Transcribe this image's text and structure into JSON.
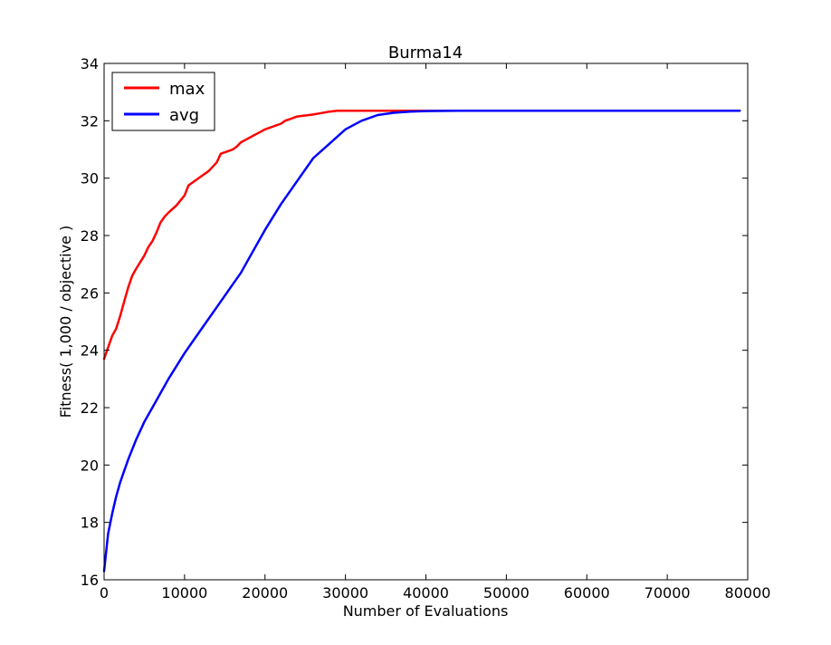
{
  "chart_data": {
    "type": "line",
    "title": "Burma14",
    "xlabel": "Number of Evaluations",
    "ylabel": "Fitness( 1,000 / objective )",
    "xlim": [
      0,
      80000
    ],
    "ylim": [
      16,
      34
    ],
    "xticks": [
      0,
      10000,
      20000,
      30000,
      40000,
      50000,
      60000,
      70000,
      80000
    ],
    "yticks": [
      16,
      18,
      20,
      22,
      24,
      26,
      28,
      30,
      32,
      34
    ],
    "xtick_labels": [
      "0",
      "10000",
      "20000",
      "30000",
      "40000",
      "50000",
      "60000",
      "70000",
      "80000"
    ],
    "ytick_labels": [
      "16",
      "18",
      "20",
      "22",
      "24",
      "26",
      "28",
      "30",
      "32",
      "34"
    ],
    "grid": false,
    "legend_position": "top-left",
    "series": [
      {
        "name": "max",
        "color": "#ff0000",
        "x": [
          0,
          500,
          1000,
          1500,
          2000,
          2500,
          3000,
          3500,
          4000,
          5000,
          5500,
          6000,
          6500,
          7000,
          7500,
          8000,
          9000,
          10000,
          10500,
          12000,
          13000,
          14000,
          14500,
          15500,
          16000,
          16500,
          17000,
          18000,
          20000,
          22000,
          22500,
          23000,
          24000,
          26000,
          27000,
          28000,
          29000,
          30000,
          35000,
          40000,
          50000,
          60000,
          70000,
          79000
        ],
        "y": [
          23.7,
          24.1,
          24.5,
          24.75,
          25.2,
          25.7,
          26.2,
          26.6,
          26.85,
          27.3,
          27.6,
          27.8,
          28.1,
          28.45,
          28.65,
          28.8,
          29.05,
          29.4,
          29.75,
          30.05,
          30.25,
          30.55,
          30.85,
          30.95,
          31.0,
          31.1,
          31.25,
          31.4,
          31.7,
          31.9,
          32.0,
          32.05,
          32.15,
          32.22,
          32.27,
          32.32,
          32.35,
          32.35,
          32.35,
          32.35,
          32.35,
          32.35,
          32.35,
          32.35
        ]
      },
      {
        "name": "avg",
        "color": "#0000ff",
        "x": [
          0,
          500,
          1000,
          1500,
          2000,
          3000,
          4000,
          5000,
          6000,
          8000,
          10000,
          12000,
          14000,
          16000,
          17000,
          18000,
          20000,
          22000,
          24000,
          26000,
          28000,
          30000,
          32000,
          34000,
          36000,
          38000,
          40000,
          44000,
          50000,
          60000,
          70000,
          79000
        ],
        "y": [
          16.3,
          17.6,
          18.3,
          18.9,
          19.4,
          20.2,
          20.9,
          21.5,
          22.0,
          23.0,
          23.9,
          24.7,
          25.5,
          26.3,
          26.7,
          27.2,
          28.2,
          29.1,
          29.9,
          30.7,
          31.2,
          31.7,
          32.0,
          32.2,
          32.28,
          32.32,
          32.34,
          32.35,
          32.35,
          32.35,
          32.35,
          32.35
        ]
      }
    ]
  }
}
